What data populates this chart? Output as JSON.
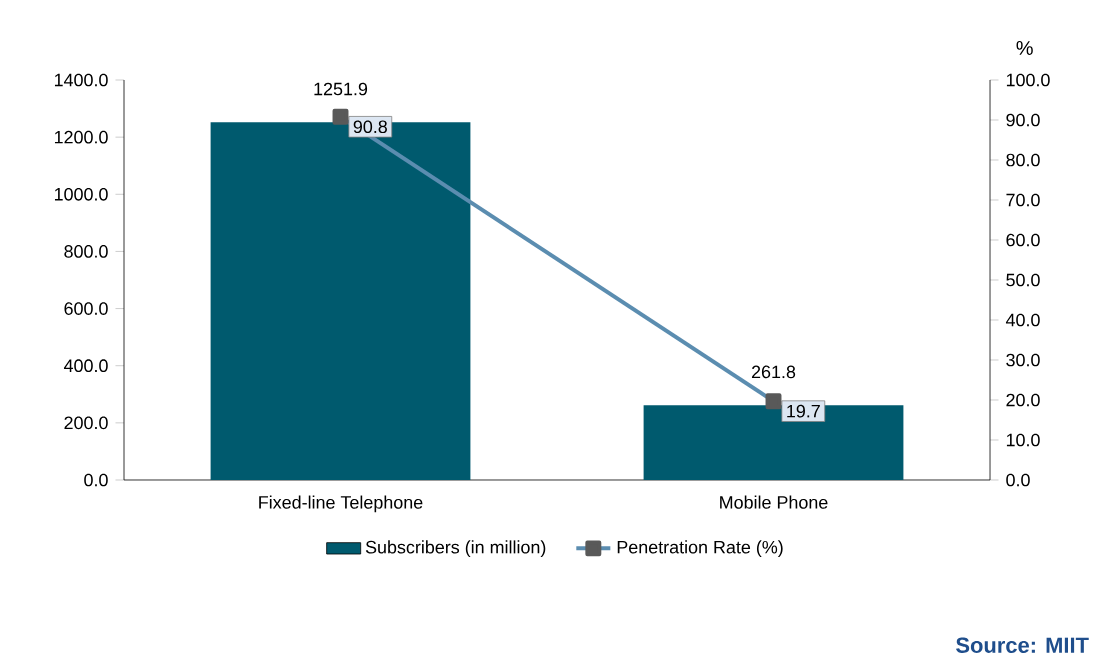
{
  "chart_data": {
    "type": "bar",
    "categories": [
      "Fixed-line Telephone",
      "Mobile Phone"
    ],
    "series": [
      {
        "name": "Subscribers (in million)",
        "color": "#005a6e",
        "values": [
          1251.9,
          261.8
        ]
      },
      {
        "name": "Penetration Rate (%)",
        "type": "line",
        "axis": "y2",
        "color": "#5b8db0",
        "values": [
          90.8,
          19.7
        ]
      }
    ],
    "ylim": [
      0,
      1400
    ],
    "yticks": [
      {
        "value": 0,
        "label": "0.0"
      },
      {
        "value": 200,
        "label": "200.0"
      },
      {
        "value": 400,
        "label": "400.0"
      },
      {
        "value": 600,
        "label": "600.0"
      },
      {
        "value": 800,
        "label": "800.0"
      },
      {
        "value": 1000,
        "label": "1000.0"
      },
      {
        "value": 1200,
        "label": "1200.0"
      },
      {
        "value": 1400,
        "label": "1400.0"
      }
    ],
    "y2lim": [
      0,
      100
    ],
    "y2ticks": [
      {
        "value": 0,
        "label": "0.0"
      },
      {
        "value": 10,
        "label": "10.0"
      },
      {
        "value": 20,
        "label": "20.0"
      },
      {
        "value": 30,
        "label": "30.0"
      },
      {
        "value": 40,
        "label": "40.0"
      },
      {
        "value": 50,
        "label": "50.0"
      },
      {
        "value": 60,
        "label": "60.0"
      },
      {
        "value": 70,
        "label": "70.0"
      },
      {
        "value": 80,
        "label": "80.0"
      },
      {
        "value": 90,
        "label": "90.0"
      },
      {
        "value": 100,
        "label": "100.0"
      }
    ],
    "y2label": "%",
    "data_labels": true,
    "marker": "square",
    "legend": "bottom",
    "annotations": [
      "Source: MIIT"
    ]
  }
}
